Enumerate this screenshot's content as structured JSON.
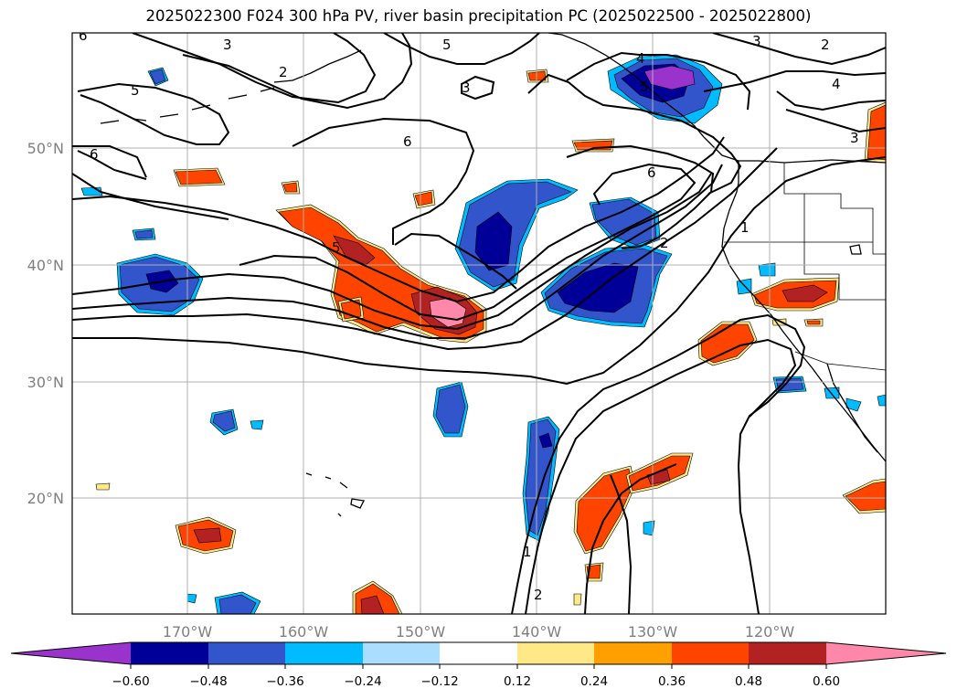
{
  "title": "2025022300 F024 300 hPa PV, river basin precipitation PC (2025022500 - 2025022800)",
  "map": {
    "lat_labels": [
      "50°N",
      "40°N",
      "30°N",
      "20°N"
    ],
    "lon_labels": [
      "170°W",
      "160°W",
      "150°W",
      "140°W",
      "130°W",
      "120°W"
    ],
    "grid": true,
    "contour_variable": "300 hPa PV",
    "shaded_variable": "precipitation PC",
    "contour_labels": [
      "6",
      "3",
      "2",
      "5",
      "5",
      "3",
      "3",
      "2",
      "4",
      "4",
      "3",
      "5",
      "6",
      "6",
      "5",
      "6",
      "2",
      "1",
      "1",
      "2"
    ]
  },
  "colorbar": {
    "tick_labels": [
      "−0.60",
      "−0.48",
      "−0.36",
      "−0.24",
      "−0.12",
      "0.12",
      "0.24",
      "0.36",
      "0.48",
      "0.60"
    ],
    "colors": [
      "#9933cc",
      "#000099",
      "#3355cc",
      "#00bbff",
      "#aaddff",
      "#ffffff",
      "#ffe888",
      "#ffa000",
      "#ff4400",
      "#b22222",
      "#ff88aa",
      "#ff88aa"
    ]
  }
}
